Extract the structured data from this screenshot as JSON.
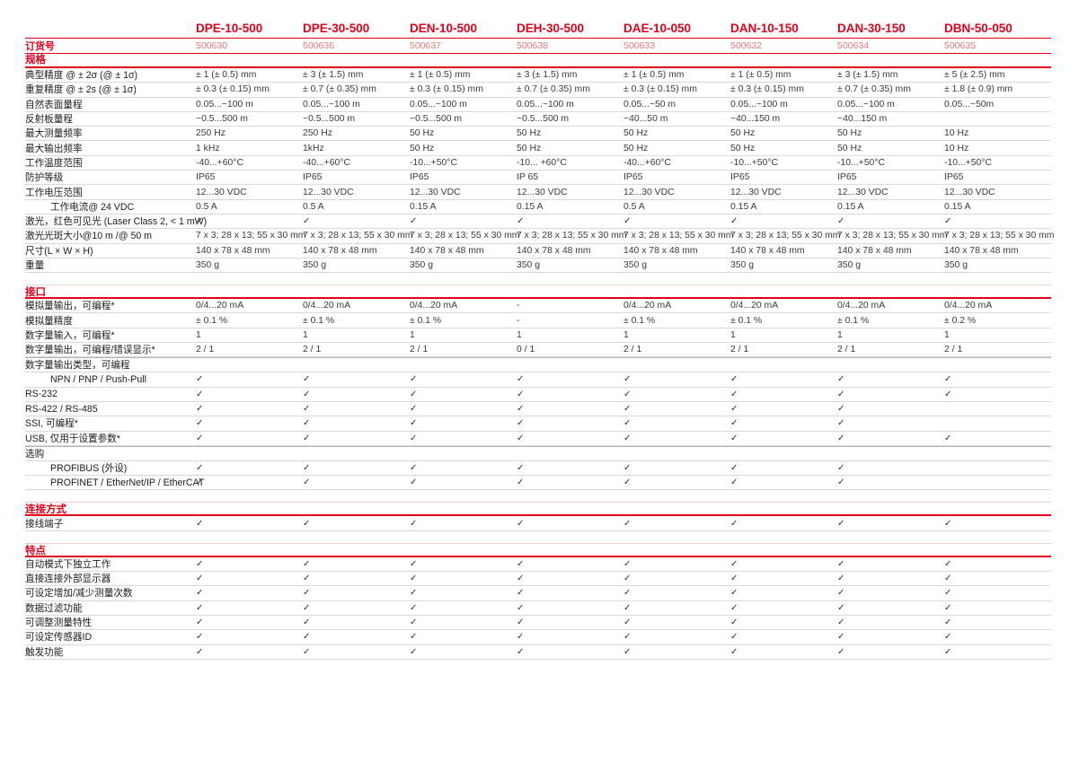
{
  "colors": {
    "accent_red": "#e2001a",
    "order_number_red": "#e7777b",
    "row_line_gray": "#d9d9d9",
    "check_color": "#2e2e2e"
  },
  "order_row_label": "订货号",
  "products": [
    {
      "model": "DPE-10-500",
      "order_no": "500630"
    },
    {
      "model": "DPE-30-500",
      "order_no": "500636"
    },
    {
      "model": "DEN-10-500",
      "order_no": "500637"
    },
    {
      "model": "DEH-30-500",
      "order_no": "500638"
    },
    {
      "model": "DAE-10-050",
      "order_no": "500633"
    },
    {
      "model": "DAN-10-150",
      "order_no": "500632"
    },
    {
      "model": "DAN-30-150",
      "order_no": "500634"
    },
    {
      "model": "DBN-50-050",
      "order_no": "500635"
    }
  ],
  "sections": [
    {
      "title": "规格",
      "rows": [
        {
          "label": "典型精度 @ ± 2σ (@ ± 1σ)",
          "values": [
            "± 1 (± 0.5) mm",
            "± 3 (± 1.5) mm",
            "± 1 (± 0.5) mm",
            "± 3 (± 1.5) mm",
            "± 1 (± 0.5) mm",
            "± 1 (± 0.5) mm",
            "± 3 (± 1.5) mm",
            "± 5 (± 2.5) mm"
          ]
        },
        {
          "label": "重复精度 @ ± 2s (@ ± 1σ)",
          "values": [
            "± 0.3 (± 0.15) mm",
            "± 0.7 (± 0.35) mm",
            "± 0.3 (± 0.15) mm",
            "± 0.7 (± 0.35) mm",
            "± 0.3 (± 0.15) mm",
            "± 0.3 (± 0.15) mm",
            "± 0.7 (± 0.35) mm",
            "± 1.8 (± 0.9) mm"
          ]
        },
        {
          "label": "自然表面量程",
          "values": [
            "0.05...~100 m",
            "0.05...~100 m",
            "0.05...~100 m",
            "0.05...~100 m",
            "0.05...~50 m",
            "0.05...~100 m",
            "0.05...~100 m",
            "0.05...~50m"
          ]
        },
        {
          "label": "反射板量程",
          "values": [
            "~0.5...500 m",
            "~0.5...500 m",
            "~0.5...500 m",
            "~0.5...500 m",
            "~40...50 m",
            "~40...150 m",
            "~40...150 m",
            ""
          ]
        },
        {
          "label": "最大测量频率",
          "values": [
            "250 Hz",
            "250 Hz",
            "50 Hz",
            "50 Hz",
            "50 Hz",
            "50 Hz",
            "50 Hz",
            "10 Hz"
          ]
        },
        {
          "label": "最大输出频率",
          "values": [
            "1 kHz",
            "1kHz",
            "50 Hz",
            "50 Hz",
            "50 Hz",
            "50 Hz",
            "50 Hz",
            "10 Hz"
          ]
        },
        {
          "label": "工作温度范围",
          "values": [
            "-40...+60°C",
            "-40...+60°C",
            "-10...+50°C",
            "-10... +60°C",
            "-40...+60°C",
            "-10...+50°C",
            "-10...+50°C",
            "-10...+50°C"
          ]
        },
        {
          "label": "防护等级",
          "values": [
            "IP65",
            "IP65",
            "IP65",
            "IP 65",
            "IP65",
            "IP65",
            "IP65",
            "IP65"
          ]
        },
        {
          "label": "工作电压范围",
          "values": [
            "12...30 VDC",
            "12...30 VDC",
            "12...30 VDC",
            "12...30 VDC",
            "12...30 VDC",
            "12...30 VDC",
            "12...30 VDC",
            "12...30 VDC"
          ]
        },
        {
          "label": "工作电流@ 24 VDC",
          "indent": true,
          "values": [
            "0.5 A",
            "0.5 A",
            "0.15 A",
            "0.15 A",
            "0.5 A",
            "0.15 A",
            "0.15 A",
            "0.15 A"
          ]
        },
        {
          "label": "激光，红色可见光 (Laser Class 2, < 1 mW)",
          "values": [
            "✓",
            "✓",
            "✓",
            "✓",
            "✓",
            "✓",
            "✓",
            "✓"
          ]
        },
        {
          "label": "激光光斑大小@10 m /@ 50 m",
          "values": [
            "7 x 3; 28 x 13; 55 x 30 mm",
            "7 x 3; 28 x 13; 55 x 30 mm",
            "7 x 3; 28 x 13; 55 x 30 mm",
            "7 x 3; 28 x 13; 55 x 30 mm",
            "7 x 3; 28 x 13; 55 x 30 mm",
            "7 x 3; 28 x 13; 55 x 30 mm",
            "7 x 3; 28 x 13; 55 x 30 mm",
            "7 x 3; 28 x 13; 55 x 30 mm"
          ]
        },
        {
          "label": "尺寸(L × W × H)",
          "values": [
            "140 x 78 x 48 mm",
            "140 x 78 x 48 mm",
            "140 x 78 x 48 mm",
            "140 x 78 x 48 mm",
            "140 x 78 x 48 mm",
            "140 x 78 x 48 mm",
            "140 x 78 x 48 mm",
            "140 x 78 x 48 mm"
          ]
        },
        {
          "label": "重量",
          "values": [
            "350 g",
            "350 g",
            "350 g",
            "350 g",
            "350 g",
            "350 g",
            "350 g",
            "350 g"
          ]
        }
      ]
    },
    {
      "title": "接口",
      "rows": [
        {
          "label": "模拟量输出，可编程*",
          "values": [
            "0/4...20 mA",
            "0/4...20 mA",
            "0/4...20 mA",
            "-",
            "0/4...20 mA",
            "0/4...20 mA",
            "0/4...20 mA",
            "0/4...20 mA"
          ]
        },
        {
          "label": "模拟量精度",
          "values": [
            "± 0.1 %",
            "± 0.1 %",
            "± 0.1 %",
            "-",
            "± 0.1 %",
            "± 0.1 %",
            "± 0.1 %",
            "± 0.2 %"
          ]
        },
        {
          "label": "数字量输入，可编程*",
          "values": [
            "1",
            "1",
            "1",
            "1",
            "1",
            "1",
            "1",
            "1"
          ]
        },
        {
          "label": "数字量输出，可编程/错误显示*",
          "values": [
            "2 / 1",
            "2 / 1",
            "2 / 1",
            "0 / 1",
            "2 / 1",
            "2 / 1",
            "2 / 1",
            "2 / 1"
          ]
        },
        {
          "label": "数字量输出类型，可编程",
          "group": true,
          "values": [
            "",
            "",
            "",
            "",
            "",
            "",
            "",
            ""
          ]
        },
        {
          "label": "NPN / PNP / Push-Pull",
          "indent": true,
          "values": [
            "✓",
            "✓",
            "✓",
            "✓",
            "✓",
            "✓",
            "✓",
            "✓"
          ]
        },
        {
          "label": "RS-232",
          "values": [
            "✓",
            "✓",
            "✓",
            "✓",
            "✓",
            "✓",
            "✓",
            "✓"
          ]
        },
        {
          "label": "RS-422 / RS-485",
          "values": [
            "✓",
            "✓",
            "✓",
            "✓",
            "✓",
            "✓",
            "✓",
            ""
          ]
        },
        {
          "label": "SSI, 可编程*",
          "values": [
            "✓",
            "✓",
            "✓",
            "✓",
            "✓",
            "✓",
            "✓",
            ""
          ]
        },
        {
          "label": "USB, 仅用于设置参数*",
          "values": [
            "✓",
            "✓",
            "✓",
            "✓",
            "✓",
            "✓",
            "✓",
            "✓"
          ]
        },
        {
          "label": "选购",
          "group": true,
          "values": [
            "",
            "",
            "",
            "",
            "",
            "",
            "",
            ""
          ]
        },
        {
          "label": "PROFIBUS (外设)",
          "indent": true,
          "values": [
            "✓",
            "✓",
            "✓",
            "✓",
            "✓",
            "✓",
            "✓",
            ""
          ]
        },
        {
          "label": "PROFINET / EtherNet/IP / EtherCAT",
          "indent": true,
          "values": [
            "✓",
            "✓",
            "✓",
            "✓",
            "✓",
            "✓",
            "✓",
            ""
          ]
        }
      ]
    },
    {
      "title": "连接方式",
      "rows": [
        {
          "label": "接线端子",
          "values": [
            "✓",
            "✓",
            "✓",
            "✓",
            "✓",
            "✓",
            "✓",
            "✓"
          ]
        }
      ]
    },
    {
      "title": "特点",
      "rows": [
        {
          "label": "自动模式下独立工作",
          "values": [
            "✓",
            "✓",
            "✓",
            "✓",
            "✓",
            "✓",
            "✓",
            "✓"
          ]
        },
        {
          "label": "直接连接外部显示器",
          "values": [
            "✓",
            "✓",
            "✓",
            "✓",
            "✓",
            "✓",
            "✓",
            "✓"
          ]
        },
        {
          "label": "可设定增加/减少测量次数",
          "values": [
            "✓",
            "✓",
            "✓",
            "✓",
            "✓",
            "✓",
            "✓",
            "✓"
          ]
        },
        {
          "label": "数据过滤功能",
          "values": [
            "✓",
            "✓",
            "✓",
            "✓",
            "✓",
            "✓",
            "✓",
            "✓"
          ]
        },
        {
          "label": "可调整测量特性",
          "values": [
            "✓",
            "✓",
            "✓",
            "✓",
            "✓",
            "✓",
            "✓",
            "✓"
          ]
        },
        {
          "label": "可设定传感器ID",
          "values": [
            "✓",
            "✓",
            "✓",
            "✓",
            "✓",
            "✓",
            "✓",
            "✓"
          ]
        },
        {
          "label": "触发功能",
          "values": [
            "✓",
            "✓",
            "✓",
            "✓",
            "✓",
            "✓",
            "✓",
            "✓"
          ]
        }
      ]
    }
  ]
}
